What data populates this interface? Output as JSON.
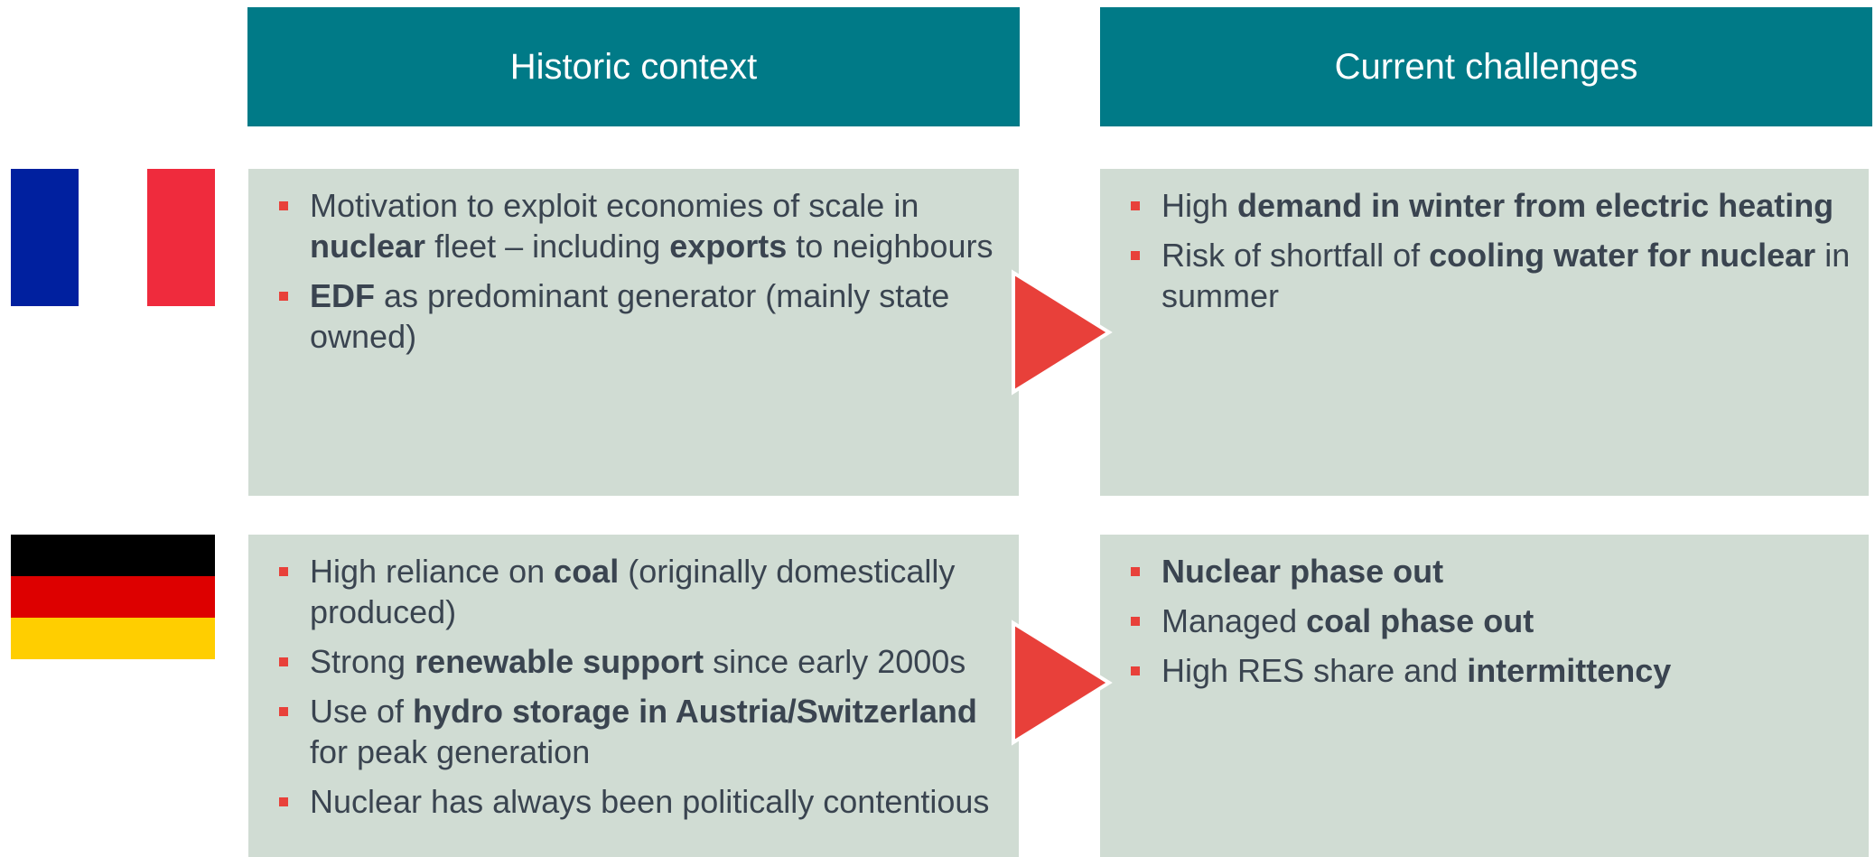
{
  "headers": [
    "Historic context",
    "Current challenges"
  ],
  "rows": [
    {
      "historic": [
        [
          {
            "text": "Motivation to exploit economies of scale in "
          },
          {
            "text": "nuclear",
            "bold": true
          },
          {
            "text": " fleet – including "
          },
          {
            "text": "exports",
            "bold": true
          },
          {
            "text": " to neighbours"
          }
        ],
        [
          {
            "text": "EDF",
            "bold": true
          },
          {
            "text": " as predominant generator (mainly state owned)"
          }
        ]
      ],
      "challenges": [
        [
          {
            "text": "High "
          },
          {
            "text": "demand in winter from electric heating",
            "bold": true
          }
        ],
        [
          {
            "text": "Risk of shortfall of "
          },
          {
            "text": "cooling water for nuclear",
            "bold": true
          },
          {
            "text": " in summer"
          }
        ]
      ]
    },
    {
      "historic": [
        [
          {
            "text": "High reliance on "
          },
          {
            "text": "coal",
            "bold": true
          },
          {
            "text": " (originally domestically produced)"
          }
        ],
        [
          {
            "text": "Strong "
          },
          {
            "text": "renewable support",
            "bold": true
          },
          {
            "text": " since early 2000s"
          }
        ],
        [
          {
            "text": "Use of "
          },
          {
            "text": "hydro storage in Austria/Switzerland",
            "bold": true
          },
          {
            "text": " for peak generation"
          }
        ],
        [
          {
            "text": "Nuclear has always been politically contentious"
          }
        ]
      ],
      "challenges": [
        [
          {
            "text": "Nuclear phase out",
            "bold": true
          }
        ],
        [
          {
            "text": "Managed "
          },
          {
            "text": "coal phase out",
            "bold": true
          }
        ],
        [
          {
            "text": "High RES share and "
          },
          {
            "text": "intermittency",
            "bold": true
          }
        ]
      ]
    }
  ]
}
